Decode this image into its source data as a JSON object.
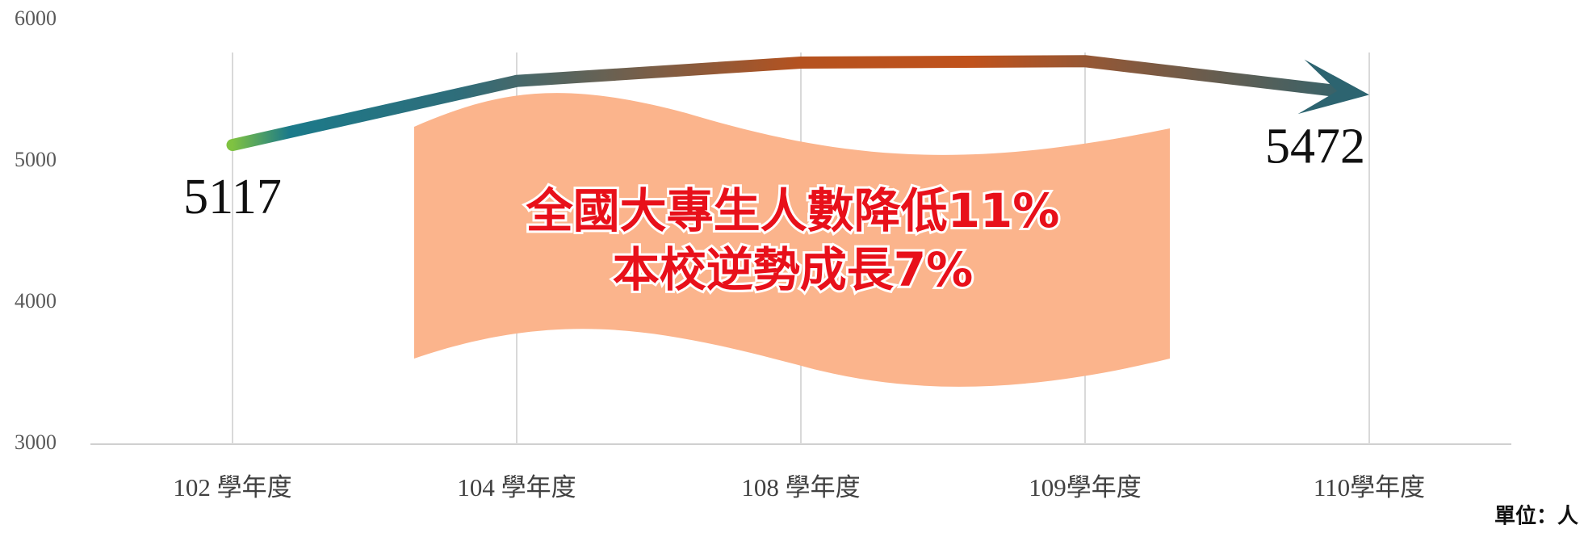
{
  "chart_data": {
    "type": "line",
    "categories": [
      "102 學年度",
      "104 學年度",
      "108 學年度",
      "109學年度",
      "110學年度"
    ],
    "values": [
      5117,
      5570,
      5700,
      5710,
      5472
    ],
    "ylim": [
      3000,
      6000
    ],
    "yticks": [
      3000,
      4000,
      5000,
      6000
    ],
    "grid": true,
    "annotations": [
      "全國大專生人數降低11%",
      "本校逆勢成長7%"
    ],
    "unit_label": "單位：人"
  }
}
